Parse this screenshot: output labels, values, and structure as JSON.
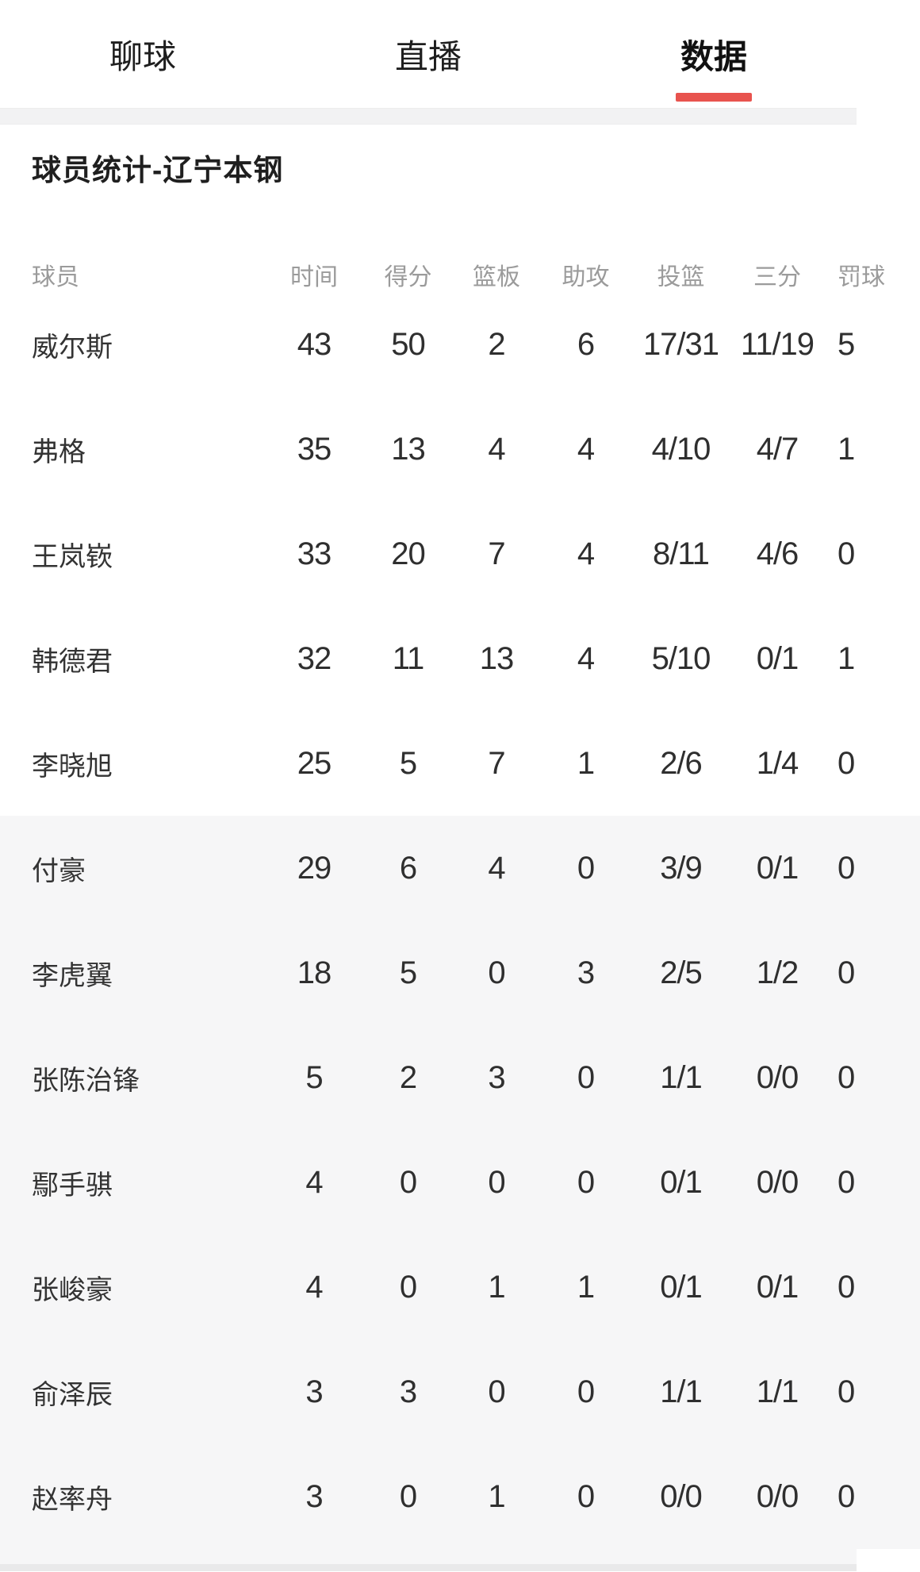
{
  "colors": {
    "accent_red": "#e8534e",
    "bench_row_bg": "#f6f6f7",
    "header_text": "#9b9b9b"
  },
  "tabs": {
    "items": [
      {
        "label": "聊球",
        "active": false
      },
      {
        "label": "直播",
        "active": false
      },
      {
        "label": "数据",
        "active": true
      }
    ]
  },
  "section": {
    "title": "球员统计-辽宁本钢"
  },
  "table": {
    "columns": [
      "球员",
      "时间",
      "得分",
      "篮板",
      "助攻",
      "投篮",
      "三分",
      "罚球"
    ],
    "column_keys": [
      "name",
      "time",
      "points",
      "rebounds",
      "assists",
      "fg",
      "three",
      "ft"
    ],
    "rows": [
      {
        "name": "威尔斯",
        "time": "43",
        "points": "50",
        "rebounds": "2",
        "assists": "6",
        "fg": "17/31",
        "three": "11/19",
        "ft": "5",
        "bench": false
      },
      {
        "name": "弗格",
        "time": "35",
        "points": "13",
        "rebounds": "4",
        "assists": "4",
        "fg": "4/10",
        "three": "4/7",
        "ft": "1",
        "bench": false
      },
      {
        "name": "王岚嵚",
        "time": "33",
        "points": "20",
        "rebounds": "7",
        "assists": "4",
        "fg": "8/11",
        "three": "4/6",
        "ft": "0",
        "bench": false
      },
      {
        "name": "韩德君",
        "time": "32",
        "points": "11",
        "rebounds": "13",
        "assists": "4",
        "fg": "5/10",
        "three": "0/1",
        "ft": "1",
        "bench": false
      },
      {
        "name": "李晓旭",
        "time": "25",
        "points": "5",
        "rebounds": "7",
        "assists": "1",
        "fg": "2/6",
        "three": "1/4",
        "ft": "0",
        "bench": false
      },
      {
        "name": "付豪",
        "time": "29",
        "points": "6",
        "rebounds": "4",
        "assists": "0",
        "fg": "3/9",
        "three": "0/1",
        "ft": "0",
        "bench": true
      },
      {
        "name": "李虎翼",
        "time": "18",
        "points": "5",
        "rebounds": "0",
        "assists": "3",
        "fg": "2/5",
        "three": "1/2",
        "ft": "0",
        "bench": true
      },
      {
        "name": "张陈治锋",
        "time": "5",
        "points": "2",
        "rebounds": "3",
        "assists": "0",
        "fg": "1/1",
        "three": "0/0",
        "ft": "0",
        "bench": true
      },
      {
        "name": "鄢手骐",
        "time": "4",
        "points": "0",
        "rebounds": "0",
        "assists": "0",
        "fg": "0/1",
        "three": "0/0",
        "ft": "0",
        "bench": true
      },
      {
        "name": "张峻豪",
        "time": "4",
        "points": "0",
        "rebounds": "1",
        "assists": "1",
        "fg": "0/1",
        "three": "0/1",
        "ft": "0",
        "bench": true
      },
      {
        "name": "俞泽辰",
        "time": "3",
        "points": "3",
        "rebounds": "0",
        "assists": "0",
        "fg": "1/1",
        "three": "1/1",
        "ft": "0",
        "bench": true
      },
      {
        "name": "赵率舟",
        "time": "3",
        "points": "0",
        "rebounds": "1",
        "assists": "0",
        "fg": "0/0",
        "three": "0/0",
        "ft": "0",
        "bench": true
      }
    ]
  }
}
